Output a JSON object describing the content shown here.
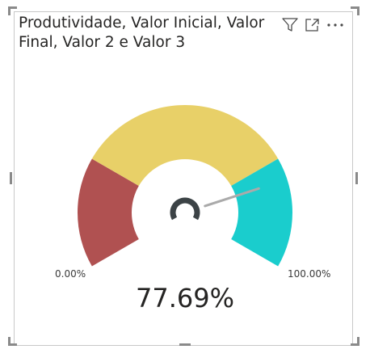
{
  "visual": {
    "title": "Produtividade, Valor Inicial, Valor Final, Valor 2 e Valor 3",
    "header_icons": [
      "filter-icon",
      "focus-mode-icon",
      "more-options-icon"
    ]
  },
  "gauge": {
    "min_label": "0.00%",
    "max_label": "100.00%",
    "value_label": "77.69%",
    "value": 0.7769,
    "needle_mark": 0.8,
    "segments": [
      {
        "from": 0.0,
        "to": 0.25,
        "color": "#b05151"
      },
      {
        "from": 0.25,
        "to": 0.75,
        "color": "#e8d068"
      },
      {
        "from": 0.75,
        "to": 1.0,
        "color": "#1acdcd"
      }
    ],
    "hub_color": "#3c4346",
    "needle_color": "#aaaaaa"
  }
}
